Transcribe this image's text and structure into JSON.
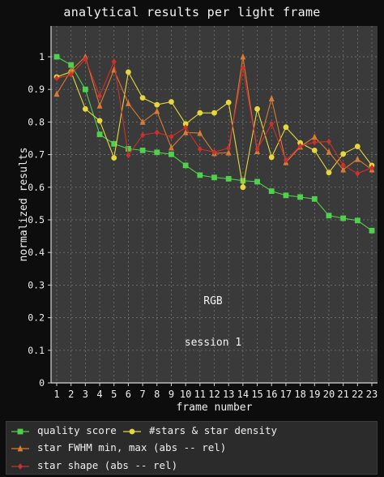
{
  "chart_data": {
    "type": "line",
    "title": "analytical results per light frame",
    "xlabel": "frame number",
    "ylabel": "normalized results",
    "x": [
      1,
      2,
      3,
      4,
      5,
      6,
      7,
      8,
      9,
      10,
      11,
      12,
      13,
      14,
      15,
      16,
      17,
      18,
      19,
      20,
      21,
      22,
      23
    ],
    "xlim": [
      1,
      23
    ],
    "ylim": [
      0,
      1.05
    ],
    "yticks": [
      "0",
      "0.1",
      "0.2",
      "0.3",
      "0.4",
      "0.5",
      "0.6",
      "0.7",
      "0.8",
      "0.9",
      "1"
    ],
    "grid": true,
    "legend_position": "bottom",
    "annotations": [
      "RGB",
      "session 1"
    ],
    "series": [
      {
        "name": "quality score",
        "color": "#4fd14b",
        "marker": "square",
        "values": [
          1.0,
          0.975,
          0.9,
          0.762,
          0.733,
          0.718,
          0.713,
          0.707,
          0.701,
          0.667,
          0.637,
          0.63,
          0.626,
          0.62,
          0.617,
          0.588,
          0.575,
          0.57,
          0.564,
          0.513,
          0.505,
          0.498,
          0.467
        ]
      },
      {
        "name": "#stars & star density",
        "color": "#e6d83c",
        "marker": "circle",
        "values": [
          0.938,
          0.954,
          0.84,
          0.804,
          0.69,
          0.953,
          0.874,
          0.853,
          0.862,
          0.794,
          0.828,
          0.828,
          0.86,
          0.6,
          0.84,
          0.692,
          0.784,
          0.736,
          0.713,
          0.645,
          0.702,
          0.725,
          0.667
        ]
      },
      {
        "name": "star FWHM min, max (abs -- rel)",
        "color": "#d97b34",
        "marker": "triangle",
        "values": [
          0.886,
          0.958,
          1.0,
          0.85,
          0.96,
          0.857,
          0.8,
          0.833,
          0.721,
          0.768,
          0.766,
          0.704,
          0.706,
          1.0,
          0.71,
          0.872,
          0.676,
          0.724,
          0.754,
          0.708,
          0.654,
          0.686,
          0.654
        ]
      },
      {
        "name": "star shape (abs -- rel)",
        "color": "#d0302a",
        "marker": "diamond",
        "values": [
          0.934,
          0.945,
          0.993,
          0.88,
          0.985,
          0.698,
          0.76,
          0.768,
          0.755,
          0.783,
          0.717,
          0.708,
          0.72,
          0.965,
          0.717,
          0.794,
          0.683,
          0.726,
          0.738,
          0.74,
          0.668,
          0.642,
          0.66
        ]
      }
    ]
  }
}
